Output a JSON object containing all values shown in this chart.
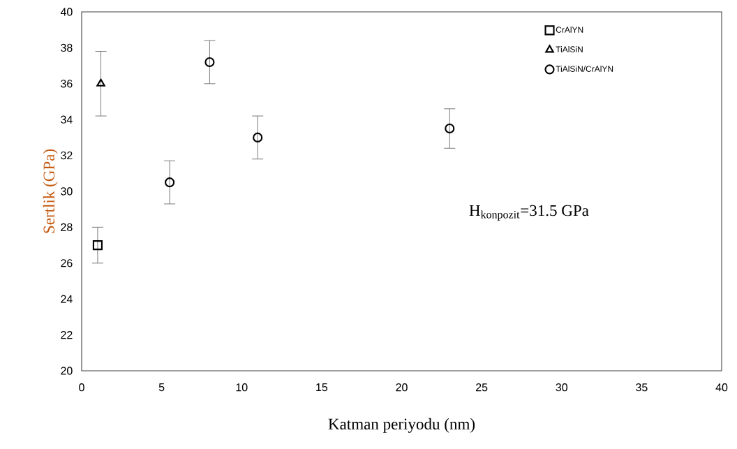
{
  "chart_data": {
    "type": "scatter",
    "xlabel": "Katman periyodu (nm)",
    "ylabel": "Sertlik (GPa)",
    "xlim": [
      0,
      40
    ],
    "xticks": [
      0,
      5,
      10,
      15,
      20,
      25,
      30,
      35,
      40
    ],
    "ylim": [
      20,
      40
    ],
    "yticks": [
      20,
      22,
      24,
      26,
      28,
      30,
      32,
      34,
      36,
      38,
      40
    ],
    "legend": "top right",
    "grid": false,
    "annotations": [
      "H$_{konpozit}$=31.5 GPa"
    ],
    "series": [
      {
        "name": "CrAlYN",
        "color": "#000000",
        "marker": "square",
        "x": [
          1
        ],
        "values": [
          27.0
        ],
        "errors": [
          1.0
        ]
      },
      {
        "name": "TiAlSiN",
        "color": "#000000",
        "marker": "triangle",
        "x": [
          1.2
        ],
        "values": [
          36.0
        ],
        "errors": [
          1.8
        ]
      },
      {
        "name": "TiAlSiN/CrAlYN",
        "color": "#000000",
        "marker": "circle",
        "x": [
          5.5,
          8,
          11,
          23
        ],
        "values": [
          30.5,
          37.2,
          33.0,
          33.5
        ],
        "errors": [
          1.2,
          1.2,
          1.2,
          1.1
        ]
      }
    ]
  }
}
